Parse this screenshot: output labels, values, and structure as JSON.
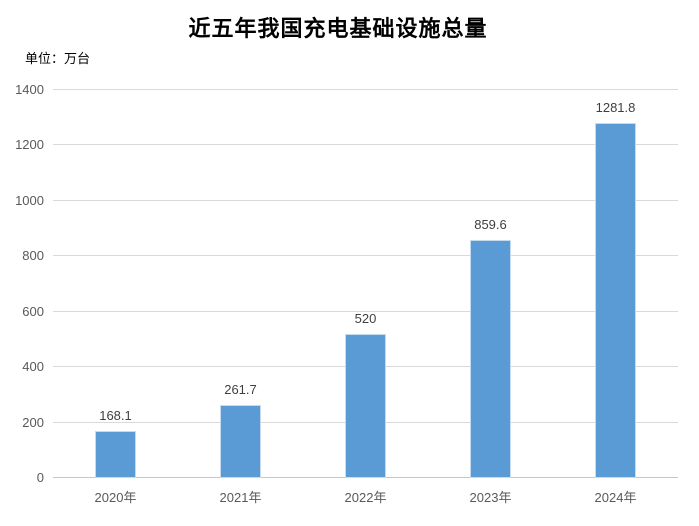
{
  "title": "近五年我国充电基础设施总量",
  "unit_label": "单位：万台",
  "chart_data": {
    "type": "bar",
    "title": "近五年我国充电基础设施总量",
    "categories": [
      "2020年",
      "2021年",
      "2022年",
      "2023年",
      "2024年"
    ],
    "values": [
      168.1,
      261.7,
      520,
      859.6,
      1281.8
    ],
    "value_labels": [
      "168.1",
      "261.7",
      "520",
      "859.6",
      "1281.8"
    ],
    "xlabel": "",
    "ylabel": "单位：万台",
    "ylim": [
      0,
      1400
    ],
    "yticks": [
      0,
      200,
      400,
      600,
      800,
      1000,
      1200,
      1400
    ],
    "grid": "horizontal",
    "legend": "none",
    "colors": {
      "bar": "#5B9BD5",
      "bar_border": "#C5DCF0",
      "gridline": "#D9D9D9",
      "axis_line": "#C8C8C8",
      "tick_label": "#595959",
      "data_label": "#3F3F3F",
      "title": "#000000"
    }
  }
}
